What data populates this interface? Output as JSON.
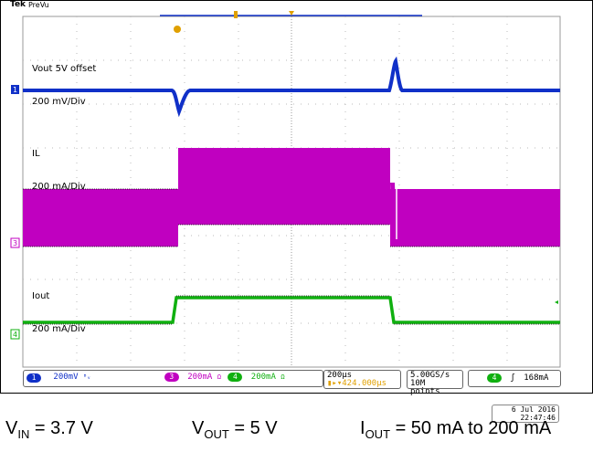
{
  "header": {
    "brand": "Tek",
    "mode": "PreVu"
  },
  "channels": [
    {
      "label": "Vout 5V offset",
      "scale": "200 mV/Div",
      "color": "#1030c8",
      "marker": "1"
    },
    {
      "label": "IL",
      "scale": "200 mA/Div",
      "color": "#c000c0",
      "marker": "3"
    },
    {
      "label": "Iout",
      "scale": "200 mA/Div",
      "color": "#10b010",
      "marker": "4"
    }
  ],
  "status_bar": {
    "ch1": "200mV",
    "ch3": "200mA",
    "ch4": "200mA",
    "timebase": "200µs",
    "trigger_pos": "424.000µs",
    "sample_rate": "5.00GS/s",
    "record_length": "10M points",
    "trigger_ch": "4",
    "trigger_slope": "ʃ",
    "trigger_level": "168mA"
  },
  "timestamp": {
    "date": "6 Jul  2016",
    "time": "22:47:46"
  },
  "conditions": {
    "vin": {
      "sym": "V",
      "sub": "IN",
      "value": " = 3.7 V"
    },
    "vout": {
      "sym": "V",
      "sub": "OUT",
      "value": " = 5 V"
    },
    "iout": {
      "sym": "I",
      "sub": "OUT",
      "value": " = 50 mA to 200 mA"
    }
  }
}
